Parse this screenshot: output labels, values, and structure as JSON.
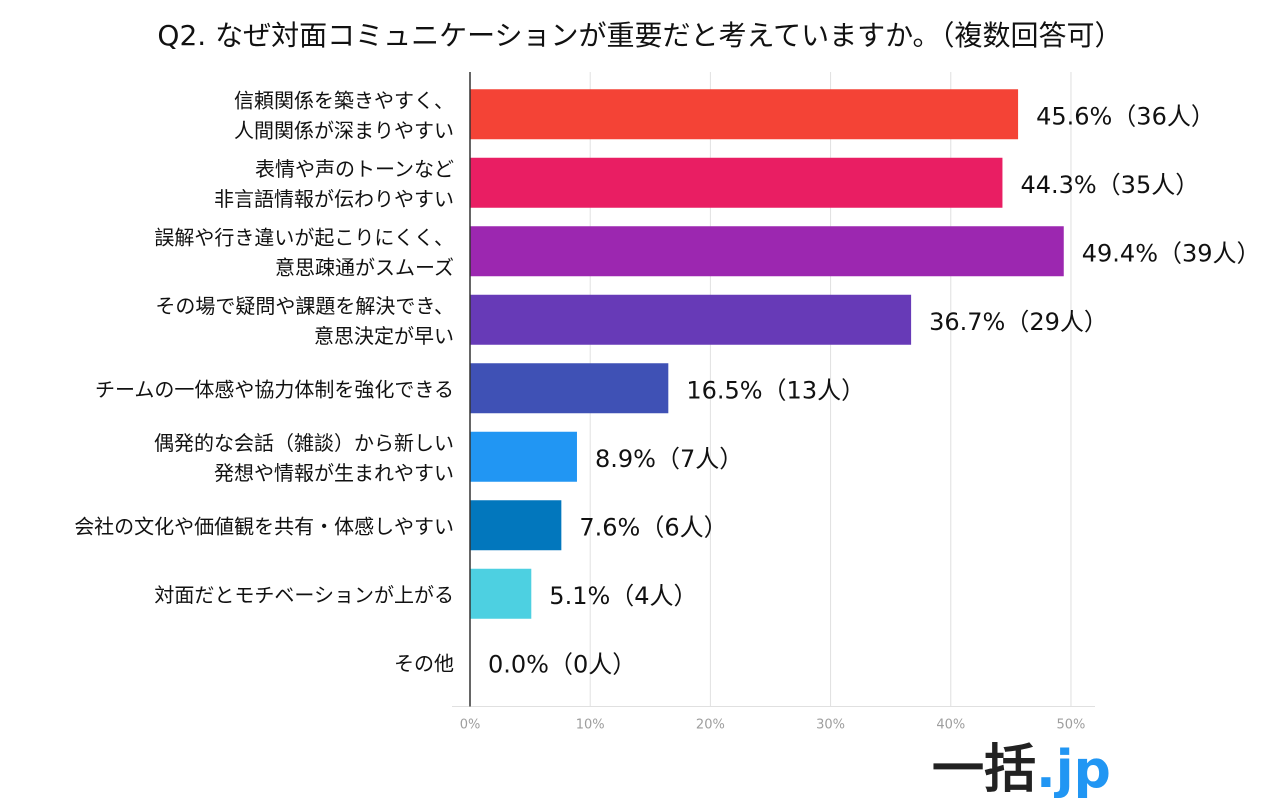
{
  "chart_data": {
    "type": "bar",
    "orientation": "horizontal",
    "title": "Q2. なぜ対面コミュニケーションが重要だと考えていますか。（複数回答可）",
    "categories": [
      [
        "信頼関係を築きやすく、",
        "人間関係が深まりやすい"
      ],
      [
        "表情や声のトーンなど",
        "非言語情報が伝わりやすい"
      ],
      [
        "誤解や行き違いが起こりにくく、",
        "意思疎通がスムーズ"
      ],
      [
        "その場で疑問や課題を解決でき、",
        "意思決定が早い"
      ],
      [
        "チームの一体感や協力体制を強化できる"
      ],
      [
        "偶発的な会話（雑談）から新しい",
        "発想や情報が生まれやすい"
      ],
      [
        "会社の文化や価値観を共有・体感しやすい"
      ],
      [
        "対面だとモチベーションが上がる"
      ],
      [
        "その他"
      ]
    ],
    "values": [
      45.6,
      44.3,
      49.4,
      36.7,
      16.5,
      8.9,
      7.6,
      5.1,
      0.0
    ],
    "data_labels": [
      "45.6%（36人）",
      "44.3%（35人）",
      "49.4%（39人）",
      "36.7%（29人）",
      "16.5%（13人）",
      "8.9%（7人）",
      "7.6%（6人）",
      "5.1%（4人）",
      "0.0%（0人）"
    ],
    "colors": [
      "#f44336",
      "#e91e63",
      "#9c27b0",
      "#673ab7",
      "#3f51b5",
      "#2196f3",
      "#0277bd",
      "#4dd0e1",
      "#cccccc"
    ],
    "xlim": [
      0,
      52
    ],
    "xticks": [
      0,
      10,
      20,
      30,
      40,
      50
    ],
    "xtick_labels": [
      "0%",
      "10%",
      "20%",
      "30%",
      "40%",
      "50%"
    ],
    "grid": true,
    "legend": "none"
  },
  "logo": {
    "main": "一括",
    "dot": ".jp"
  },
  "colors": {
    "grid": "#e0e0e0",
    "axis": "#333333",
    "tick_text": "#9e9e9e"
  }
}
